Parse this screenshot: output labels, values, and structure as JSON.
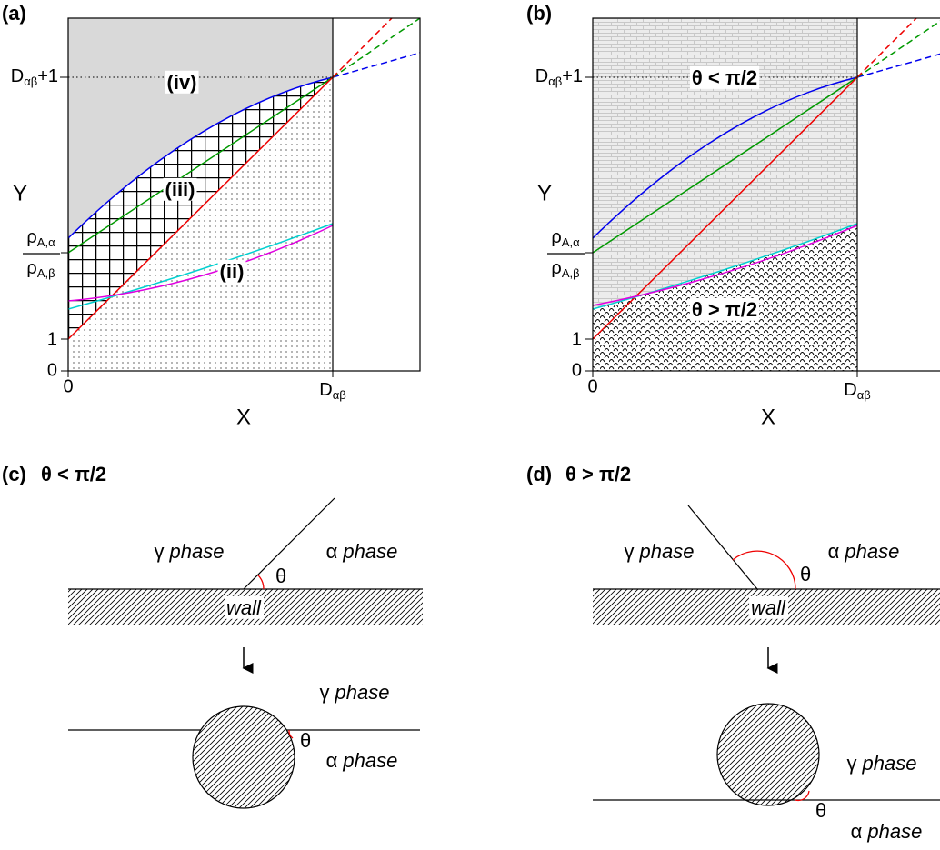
{
  "plots": [
    {
      "label": "(a)",
      "x_label": "X",
      "y_label": "Y",
      "x_ticks": [
        "0",
        {
          "base": "D",
          "sub": "αβ"
        }
      ],
      "y_ticks": [
        "0",
        "1",
        {
          "num": {
            "base": "ρ",
            "sub": "A,α"
          },
          "den": {
            "base": "ρ",
            "sub": "A,β"
          }
        },
        {
          "base": "D",
          "sub": "αβ",
          "suffix": "+1"
        }
      ],
      "region_labels": [
        "(iv)",
        "(iii)",
        "(ii)"
      ]
    },
    {
      "label": "(b)",
      "x_label": "X",
      "y_label": "Y",
      "x_ticks": [
        "0",
        {
          "base": "D",
          "sub": "αβ"
        }
      ],
      "y_ticks": [
        "0",
        "1",
        {
          "num": {
            "base": "ρ",
            "sub": "A,α"
          },
          "den": {
            "base": "ρ",
            "sub": "A,β"
          }
        },
        {
          "base": "D",
          "sub": "αβ",
          "suffix": "+1"
        }
      ],
      "region_labels": [
        "θ < π/2",
        "θ > π/2"
      ]
    }
  ],
  "sketches": [
    {
      "label": "(c)",
      "title": "θ < π/2",
      "top": {
        "left": {
          "symbol": "γ",
          "word": "phase"
        },
        "right": {
          "symbol": "α",
          "word": "phase"
        },
        "wall": "wall",
        "angle": "θ"
      },
      "bottom": {
        "upper": {
          "symbol": "γ",
          "word": "phase"
        },
        "lower": {
          "symbol": "α",
          "word": "phase"
        },
        "angle": "θ"
      }
    },
    {
      "label": "(d)",
      "title": "θ > π/2",
      "top": {
        "left": {
          "symbol": "γ",
          "word": "phase"
        },
        "right": {
          "symbol": "α",
          "word": "phase"
        },
        "wall": "wall",
        "angle": "θ"
      },
      "bottom": {
        "upper": {
          "symbol": "γ",
          "word": "phase"
        },
        "lower": {
          "symbol": "α",
          "word": "phase"
        },
        "angle": "θ"
      }
    }
  ]
}
